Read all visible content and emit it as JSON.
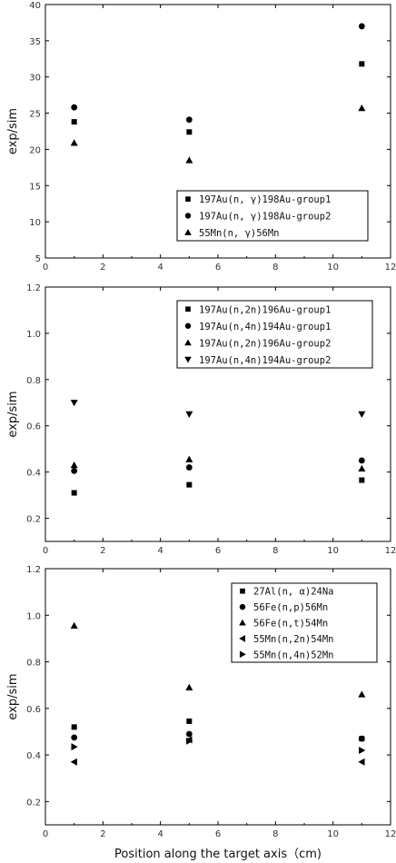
{
  "figure": {
    "xlabel": "Position along the target axis（cm)"
  },
  "chart_data": [
    {
      "type": "scatter",
      "xlim": [
        0,
        12
      ],
      "ylim": [
        5,
        40
      ],
      "xticks": [
        0,
        2,
        4,
        6,
        8,
        10,
        12
      ],
      "yticks": [
        5,
        10,
        15,
        20,
        25,
        30,
        35,
        40
      ],
      "ytick_labels": [
        "5",
        "10",
        "15",
        "20",
        "25",
        "30",
        "35",
        "40"
      ],
      "ylabel": "exp/sim",
      "xlabel": "",
      "legend_position": "bottom-right",
      "series": [
        {
          "name": "197Au(n, γ)198Au-group1",
          "marker": "square",
          "x": [
            1,
            5,
            11
          ],
          "y": [
            23.8,
            22.4,
            31.8
          ]
        },
        {
          "name": "197Au(n, γ)198Au-group2",
          "marker": "circle",
          "x": [
            1,
            5,
            11
          ],
          "y": [
            25.8,
            24.1,
            37.0
          ]
        },
        {
          "name": "55Mn(n, γ)56Mn",
          "marker": "triangle-up",
          "x": [
            1,
            5,
            11
          ],
          "y": [
            20.9,
            18.5,
            25.7
          ]
        }
      ]
    },
    {
      "type": "scatter",
      "xlim": [
        0,
        12
      ],
      "ylim": [
        0.1,
        1.2
      ],
      "xticks": [
        0,
        2,
        4,
        6,
        8,
        10,
        12
      ],
      "yticks": [
        0.2,
        0.4,
        0.6,
        0.8,
        1.0,
        1.2
      ],
      "ytick_labels": [
        "0.2",
        "0.4",
        "0.6",
        "0.8",
        "1.0",
        "1.2"
      ],
      "ylabel": "exp/sim",
      "xlabel": "",
      "legend_position": "top-right",
      "series": [
        {
          "name": "197Au(n,2n)196Au-group1",
          "marker": "square",
          "x": [
            1,
            5,
            11
          ],
          "y": [
            0.31,
            0.345,
            0.365
          ]
        },
        {
          "name": "197Au(n,4n)194Au-group1",
          "marker": "circle",
          "x": [
            1,
            5,
            11
          ],
          "y": [
            0.405,
            0.42,
            0.45
          ]
        },
        {
          "name": "197Au(n,2n)196Au-group2",
          "marker": "triangle-up",
          "x": [
            1,
            5,
            11
          ],
          "y": [
            0.43,
            0.455,
            0.415
          ]
        },
        {
          "name": "197Au(n,4n)194Au-group2",
          "marker": "triangle-down",
          "x": [
            1,
            5,
            11
          ],
          "y": [
            0.7,
            0.65,
            0.65
          ]
        }
      ]
    },
    {
      "type": "scatter",
      "xlim": [
        0,
        12
      ],
      "ylim": [
        0.1,
        1.2
      ],
      "xticks": [
        0,
        2,
        4,
        6,
        8,
        10,
        12
      ],
      "yticks": [
        0.2,
        0.4,
        0.6,
        0.8,
        1.0,
        1.2
      ],
      "ytick_labels": [
        "0.2",
        "0.4",
        "0.6",
        "0.8",
        "1.0",
        "1.2"
      ],
      "ylabel": "exp/sim",
      "xlabel": "Position along the target axis（cm)",
      "legend_position": "top-right",
      "series": [
        {
          "name": "27Al(n, α)24Na",
          "marker": "square",
          "x": [
            1,
            5,
            11
          ],
          "y": [
            0.52,
            0.545,
            0.47
          ]
        },
        {
          "name": "56Fe(n,p)56Mn",
          "marker": "circle",
          "x": [
            1,
            5,
            11
          ],
          "y": [
            0.475,
            0.49,
            0.47
          ]
        },
        {
          "name": "56Fe(n,t)54Mn",
          "marker": "triangle-up",
          "x": [
            1,
            5,
            11
          ],
          "y": [
            0.955,
            0.69,
            0.66
          ]
        },
        {
          "name": "55Mn(n,2n)54Mn",
          "marker": "triangle-left",
          "x": [
            1,
            5,
            11
          ],
          "y": [
            0.37,
            0.465,
            0.37
          ]
        },
        {
          "name": "55Mn(n,4n)52Mn",
          "marker": "triangle-right",
          "x": [
            1,
            5,
            11
          ],
          "y": [
            0.435,
            0.46,
            0.42
          ]
        }
      ]
    }
  ]
}
